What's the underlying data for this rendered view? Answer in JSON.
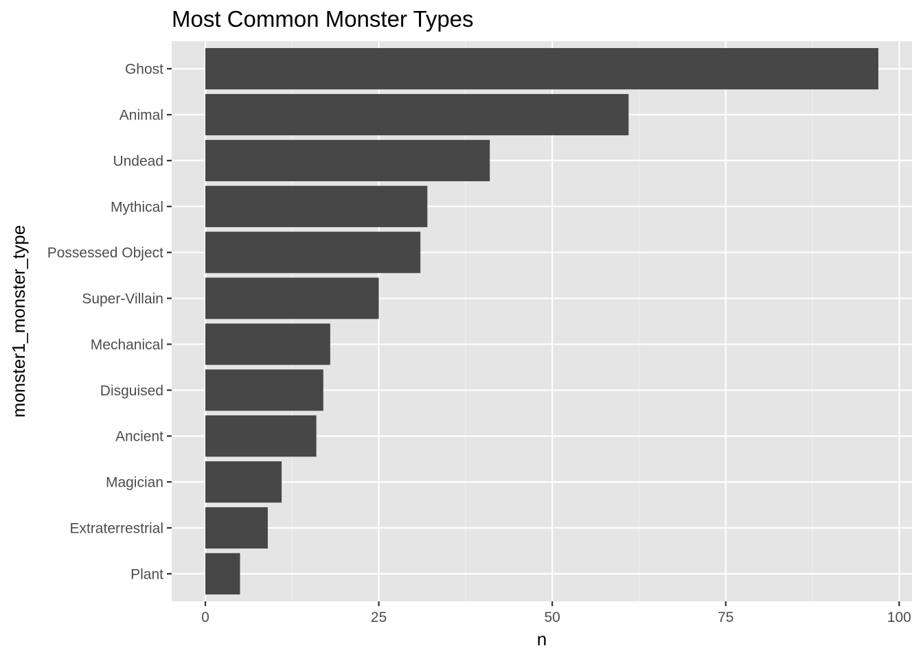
{
  "chart_data": {
    "type": "bar",
    "orientation": "horizontal",
    "title": "Most Common Monster Types",
    "xlabel": "n",
    "ylabel": "monster1_monster_type",
    "categories": [
      "Ghost",
      "Animal",
      "Undead",
      "Mythical",
      "Possessed Object",
      "Super-Villain",
      "Mechanical",
      "Disguised",
      "Ancient",
      "Magician",
      "Extraterrestrial",
      "Plant"
    ],
    "values": [
      97,
      61,
      41,
      32,
      31,
      25,
      18,
      17,
      16,
      11,
      9,
      5
    ],
    "xlim": [
      -4.85,
      101.85
    ],
    "x_ticks": [
      0,
      25,
      50,
      75,
      100
    ],
    "grid": true,
    "legend": "none",
    "colors": {
      "bar": "#474747",
      "panel": "#e5e5e5",
      "grid_major": "#ffffff",
      "grid_minor": "#f2f2f2",
      "tick_text": "#4d4d4d",
      "tick_mark": "#333333"
    }
  }
}
